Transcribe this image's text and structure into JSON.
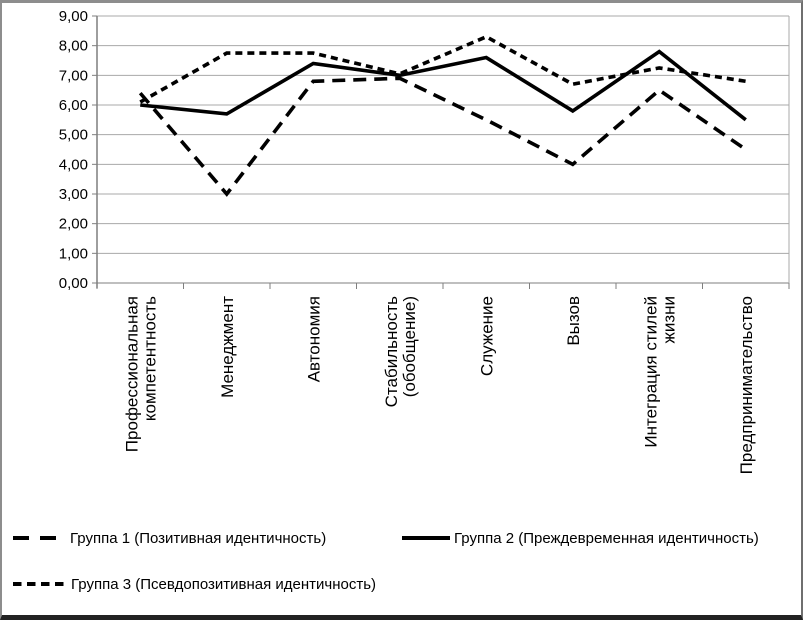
{
  "chart_data": {
    "type": "line",
    "title": "",
    "xlabel": "",
    "ylabel": "",
    "ylim": [
      0,
      9
    ],
    "ytick_step": 1,
    "ytick_labels": [
      "0,00",
      "1,00",
      "2,00",
      "3,00",
      "4,00",
      "5,00",
      "6,00",
      "7,00",
      "8,00",
      "9,00"
    ],
    "grid": true,
    "gridline_color": "#a8a8a8",
    "axis_color": "#7f7f7f",
    "line_color": "#000000",
    "legend_position": "bottom-left, two rows",
    "categories": [
      "Профессиональная компетентность",
      "Менеджмент",
      "Автономия",
      "Стабильность (обобщение)",
      "Служение",
      "Вызов",
      "Интеграция стилей жизни",
      "Предпринимательство"
    ],
    "category_label_lines": [
      [
        "Профессиональная",
        "компетентность"
      ],
      [
        "Менеджмент"
      ],
      [
        "Автономия"
      ],
      [
        "Стабильность",
        "(обобщение)"
      ],
      [
        "Служение"
      ],
      [
        "Вызов"
      ],
      [
        "Интеграция стилей",
        "жизни"
      ],
      [
        "Предпринимательство"
      ]
    ],
    "series": [
      {
        "name": "Группа 1 (Позитивная идентичность)",
        "style": "long-dash",
        "color": "#000000",
        "values": [
          6.4,
          3.0,
          6.8,
          6.9,
          5.5,
          4.0,
          6.5,
          4.5
        ]
      },
      {
        "name": "Группа 2 (Преждевременная идентичность)",
        "style": "solid",
        "color": "#000000",
        "values": [
          6.0,
          5.7,
          7.4,
          7.0,
          7.6,
          5.8,
          7.8,
          5.5
        ]
      },
      {
        "name": "Группа 3 (Псевдопозитивная идентичность)",
        "style": "short-dash",
        "color": "#000000",
        "values": [
          6.1,
          7.75,
          7.75,
          7.05,
          8.3,
          6.7,
          7.25,
          6.8
        ]
      }
    ]
  }
}
